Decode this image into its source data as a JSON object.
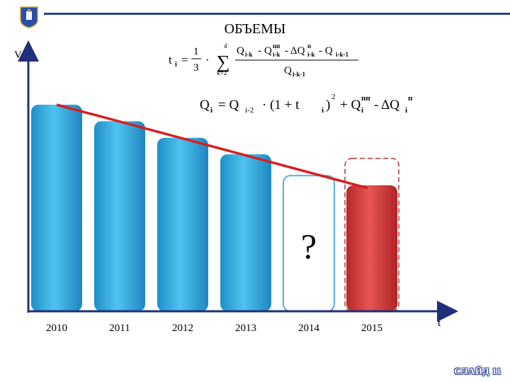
{
  "header": {
    "title": "ОБЪЕМЫ",
    "logo_icon": "coat-of-arms-icon"
  },
  "formulas": {
    "f1_lhs": "t",
    "f1_lhs_sub": "i",
    "f1_equals": "=",
    "f1_frac_num": "1",
    "f1_frac_den": "3",
    "f1_dot": "·",
    "f1_sum_symbol": "∑",
    "f1_sum_upper": "4",
    "f1_sum_lower": "k=2",
    "f1_num_a": "Q",
    "f1_num_a_sub": "i-k",
    "f1_minus1": "-",
    "f1_num_b": "Q",
    "f1_num_b_sup": "пп",
    "f1_num_b_sub": "i-k",
    "f1_minus2": "- ΔQ",
    "f1_num_c_sup": "п",
    "f1_num_c_sub": "i-k",
    "f1_minus3": "- Q",
    "f1_num_d_sub": "i-k-1",
    "f1_den": "Q",
    "f1_den_sub": "i-k-1",
    "f2_lhs": "Q",
    "f2_lhs_sub": "i",
    "f2_eq": "= Q",
    "f2_eq_sub": "i-2",
    "f2_mid": "·   (1 + t",
    "f2_mid_sub": "i",
    "f2_close": ")",
    "f2_sq": "2",
    "f2_plus": "+ Q",
    "f2_plus_sub": "i",
    "f2_plus_sup": "пп",
    "f2_tail": "- ΔQ",
    "f2_tail_sub": "i",
    "f2_tail_sup": "п"
  },
  "slide_label": "СЛАЙД 11",
  "chart_data": {
    "type": "bar",
    "xlabel": "t",
    "ylabel": "V",
    "categories": [
      "2010",
      "2011",
      "2012",
      "2013",
      "2014",
      "2015"
    ],
    "values": [
      100,
      92,
      84,
      76,
      null,
      61
    ],
    "ylim": [
      0,
      100
    ],
    "unknown_label": "?",
    "unknown_category": "2014",
    "trend_line": {
      "from": 100,
      "to": 61
    },
    "colors": {
      "bar": "#2ea8dc",
      "bar_highlight": "#d63a3a",
      "trend": "#d62020",
      "placeholder_outline": "#5ab0d8",
      "placeholder_red_outline": "#c03030",
      "axis": "#1f2f7a"
    },
    "grid": false
  }
}
